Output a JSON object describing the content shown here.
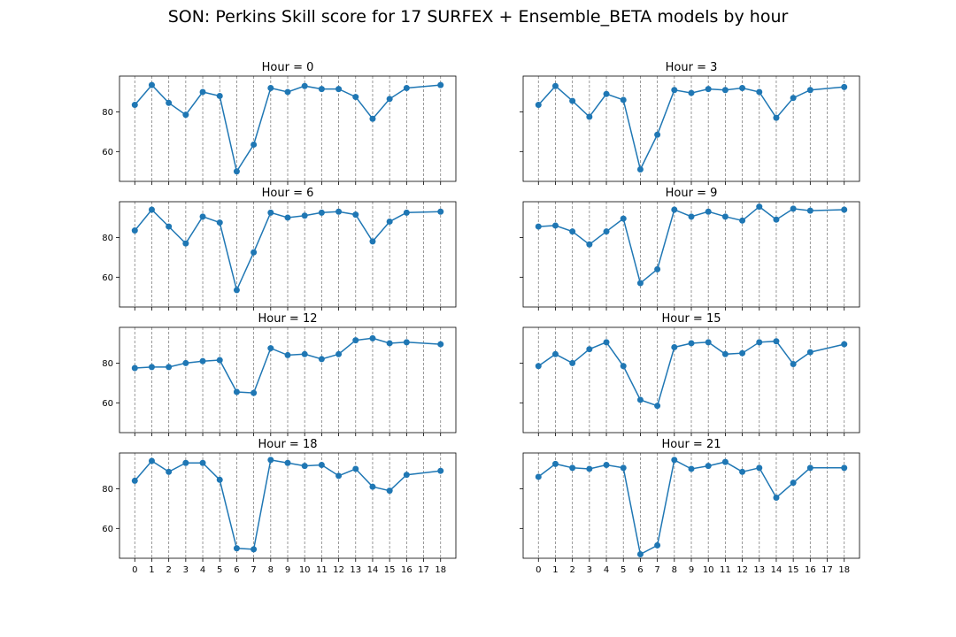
{
  "figure": {
    "title": "SON: Perkins Skill score for 17 SURFEX + Ensemble_BETA models by hour"
  },
  "colors": {
    "series": "#1f77b4",
    "vline": "#808080",
    "axis": "#000000"
  },
  "chart_data": [
    {
      "type": "line",
      "title": "Hour = 0",
      "x": [
        0,
        1,
        2,
        3,
        4,
        5,
        6,
        7,
        8,
        9,
        10,
        11,
        12,
        13,
        14,
        15,
        16,
        18
      ],
      "values": [
        83.5,
        93.5,
        84.5,
        78.5,
        90,
        88,
        50,
        63.5,
        92,
        90,
        93,
        91.5,
        91.5,
        87.5,
        76.5,
        86.5,
        92,
        93.5
      ],
      "ylim": [
        45,
        98
      ],
      "yticks": [
        60,
        80
      ],
      "xticks": [
        0,
        1,
        2,
        3,
        4,
        5,
        6,
        7,
        8,
        9,
        10,
        11,
        12,
        13,
        14,
        15,
        16,
        17,
        18
      ],
      "grid": "vertical dashed"
    },
    {
      "type": "line",
      "title": "Hour = 3",
      "x": [
        0,
        1,
        2,
        3,
        4,
        5,
        6,
        7,
        8,
        9,
        10,
        11,
        12,
        13,
        14,
        15,
        16,
        18
      ],
      "values": [
        83.5,
        93,
        85.5,
        77.5,
        89,
        86,
        51,
        68.5,
        91,
        89.5,
        91.5,
        91,
        92,
        90,
        77,
        87,
        91,
        92.5
      ],
      "ylim": [
        45,
        98
      ],
      "yticks": [
        60,
        80
      ],
      "xticks": [
        0,
        1,
        2,
        3,
        4,
        5,
        6,
        7,
        8,
        9,
        10,
        11,
        12,
        13,
        14,
        15,
        16,
        17,
        18
      ],
      "grid": "vertical dashed"
    },
    {
      "type": "line",
      "title": "Hour = 6",
      "x": [
        0,
        1,
        2,
        3,
        4,
        5,
        6,
        7,
        8,
        9,
        10,
        11,
        12,
        13,
        14,
        15,
        16,
        18
      ],
      "values": [
        83.5,
        94,
        85.5,
        77,
        90.5,
        87.5,
        53.5,
        72.5,
        92.5,
        90,
        91,
        92.5,
        93,
        91.5,
        78,
        88,
        92.5,
        93
      ],
      "ylim": [
        45,
        98
      ],
      "yticks": [
        60,
        80
      ],
      "xticks": [
        0,
        1,
        2,
        3,
        4,
        5,
        6,
        7,
        8,
        9,
        10,
        11,
        12,
        13,
        14,
        15,
        16,
        17,
        18
      ],
      "grid": "vertical dashed"
    },
    {
      "type": "line",
      "title": "Hour = 9",
      "x": [
        0,
        1,
        2,
        3,
        4,
        5,
        6,
        7,
        8,
        9,
        10,
        11,
        12,
        13,
        14,
        15,
        16,
        18
      ],
      "values": [
        85.5,
        86,
        83,
        76.5,
        83,
        89.5,
        57,
        64,
        94,
        90.5,
        93,
        90.5,
        88.5,
        95.5,
        89,
        94.5,
        93.5,
        94
      ],
      "ylim": [
        45,
        98
      ],
      "yticks": [
        60,
        80
      ],
      "xticks": [
        0,
        1,
        2,
        3,
        4,
        5,
        6,
        7,
        8,
        9,
        10,
        11,
        12,
        13,
        14,
        15,
        16,
        17,
        18
      ],
      "grid": "vertical dashed"
    },
    {
      "type": "line",
      "title": "Hour = 12",
      "x": [
        0,
        1,
        2,
        3,
        4,
        5,
        6,
        7,
        8,
        9,
        10,
        11,
        12,
        13,
        14,
        15,
        16,
        18
      ],
      "values": [
        77.5,
        78,
        78,
        80,
        81,
        81.5,
        65.5,
        65,
        87.5,
        84,
        84.5,
        82,
        84.5,
        91.5,
        92.5,
        90,
        90.5,
        89.5
      ],
      "ylim": [
        45,
        98
      ],
      "yticks": [
        60,
        80
      ],
      "xticks": [
        0,
        1,
        2,
        3,
        4,
        5,
        6,
        7,
        8,
        9,
        10,
        11,
        12,
        13,
        14,
        15,
        16,
        17,
        18
      ],
      "grid": "vertical dashed"
    },
    {
      "type": "line",
      "title": "Hour = 15",
      "x": [
        0,
        1,
        2,
        3,
        4,
        5,
        6,
        7,
        8,
        9,
        10,
        11,
        12,
        13,
        14,
        15,
        16,
        18
      ],
      "values": [
        78.5,
        84.5,
        80,
        87,
        90.5,
        78.5,
        61.5,
        58.5,
        88,
        90,
        90.5,
        84.5,
        85,
        90.5,
        91,
        79.5,
        85.5,
        89.5
      ],
      "ylim": [
        45,
        98
      ],
      "yticks": [
        60,
        80
      ],
      "xticks": [
        0,
        1,
        2,
        3,
        4,
        5,
        6,
        7,
        8,
        9,
        10,
        11,
        12,
        13,
        14,
        15,
        16,
        17,
        18
      ],
      "grid": "vertical dashed"
    },
    {
      "type": "line",
      "title": "Hour = 18",
      "x": [
        0,
        1,
        2,
        3,
        4,
        5,
        6,
        7,
        8,
        9,
        10,
        11,
        12,
        13,
        14,
        15,
        16,
        18
      ],
      "values": [
        84,
        94,
        88.5,
        93,
        93,
        84.5,
        50,
        49.5,
        94.5,
        93,
        91.5,
        92,
        86.5,
        90,
        81,
        79,
        87,
        89
      ],
      "ylim": [
        45,
        98
      ],
      "yticks": [
        60,
        80
      ],
      "xticks": [
        0,
        1,
        2,
        3,
        4,
        5,
        6,
        7,
        8,
        9,
        10,
        11,
        12,
        13,
        14,
        15,
        16,
        17,
        18
      ],
      "grid": "vertical dashed"
    },
    {
      "type": "line",
      "title": "Hour = 21",
      "x": [
        0,
        1,
        2,
        3,
        4,
        5,
        6,
        7,
        8,
        9,
        10,
        11,
        12,
        13,
        14,
        15,
        16,
        18
      ],
      "values": [
        86,
        92.5,
        90.5,
        90,
        92,
        90.5,
        47,
        51.5,
        94.5,
        90,
        91.5,
        93.5,
        88.5,
        90.5,
        75.5,
        83,
        90.5,
        90.5
      ],
      "ylim": [
        45,
        98
      ],
      "yticks": [
        60,
        80
      ],
      "xticks": [
        0,
        1,
        2,
        3,
        4,
        5,
        6,
        7,
        8,
        9,
        10,
        11,
        12,
        13,
        14,
        15,
        16,
        17,
        18
      ],
      "grid": "vertical dashed"
    }
  ]
}
